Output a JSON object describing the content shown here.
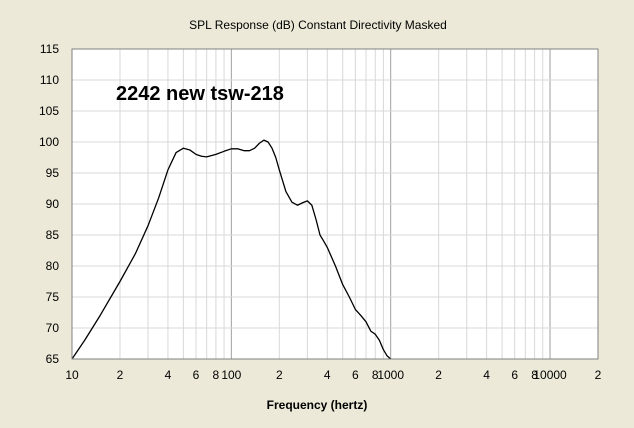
{
  "chart_data": {
    "type": "line",
    "title": "SPL Response (dB)   Constant Directivity   Masked",
    "xlabel": "Frequency (hertz)",
    "ylabel": "",
    "annotation": "2242 new tsw-218",
    "x_scale": "log",
    "xlim": [
      10,
      20000
    ],
    "ylim": [
      65,
      115
    ],
    "y_ticks": [
      65,
      70,
      75,
      80,
      85,
      90,
      95,
      100,
      105,
      110,
      115
    ],
    "x_ticks": [
      {
        "value": 10,
        "label": "10"
      },
      {
        "value": 20,
        "label": "2"
      },
      {
        "value": 40,
        "label": "4"
      },
      {
        "value": 60,
        "label": "6"
      },
      {
        "value": 80,
        "label": "8"
      },
      {
        "value": 100,
        "label": "100"
      },
      {
        "value": 200,
        "label": "2"
      },
      {
        "value": 400,
        "label": "4"
      },
      {
        "value": 600,
        "label": "6"
      },
      {
        "value": 800,
        "label": "8"
      },
      {
        "value": 1000,
        "label": "1000"
      },
      {
        "value": 2000,
        "label": "2"
      },
      {
        "value": 4000,
        "label": "4"
      },
      {
        "value": 6000,
        "label": "6"
      },
      {
        "value": 8000,
        "label": "8"
      },
      {
        "value": 10000,
        "label": "10000"
      },
      {
        "value": 20000,
        "label": "2"
      }
    ],
    "grid": true,
    "colors": {
      "background": "#ece9d8",
      "plot": "#ffffff",
      "grid_minor": "#d8d8d8",
      "grid_major": "#a0a0a0",
      "line": "#000000"
    },
    "series": [
      {
        "x": [
          10,
          12,
          15,
          20,
          25,
          30,
          35,
          40,
          45,
          50,
          55,
          60,
          65,
          70,
          80,
          90,
          100,
          110,
          120,
          130,
          140,
          150,
          160,
          170,
          180,
          190,
          200,
          220,
          240,
          260,
          280,
          300,
          320,
          340,
          360,
          380,
          400,
          450,
          500,
          550,
          600,
          650,
          700,
          750,
          800,
          850,
          900,
          950,
          1000
        ],
        "y": [
          65.0,
          68.0,
          72.0,
          77.5,
          82.0,
          86.5,
          91.0,
          95.5,
          98.3,
          99.0,
          98.7,
          98.0,
          97.7,
          97.6,
          98.0,
          98.5,
          98.9,
          98.9,
          98.6,
          98.6,
          99.0,
          99.8,
          100.3,
          100.0,
          99.0,
          97.5,
          95.5,
          92.0,
          90.3,
          89.8,
          90.2,
          90.5,
          89.8,
          87.5,
          85.0,
          84.0,
          83.0,
          80.0,
          77.0,
          75.0,
          73.0,
          72.0,
          71.0,
          69.5,
          69.0,
          68.0,
          66.5,
          65.5,
          65.0
        ]
      }
    ]
  }
}
